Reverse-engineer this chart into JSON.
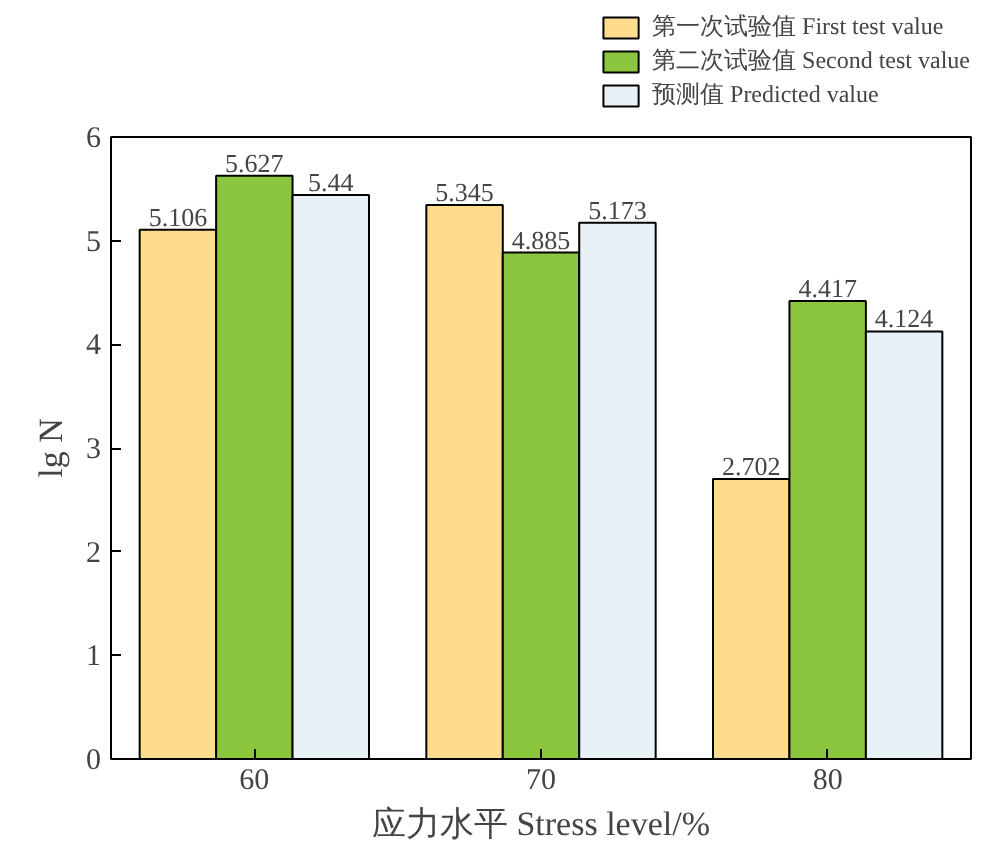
{
  "chart_data": {
    "type": "bar",
    "xlabel": "应力水平 Stress level/%",
    "ylabel": "lg N",
    "categories": [
      "60",
      "70",
      "80"
    ],
    "series": [
      {
        "name": "第一次试验值 First test value",
        "color": "#fddc8e",
        "values": [
          5.106,
          5.345,
          2.702
        ]
      },
      {
        "name": "第二次试验值 Second test value",
        "color": "#8cc63f",
        "values": [
          5.627,
          4.885,
          4.417
        ]
      },
      {
        "name": "预测值 Predicted value",
        "color": "#e8f1f5",
        "values": [
          5.44,
          5.173,
          4.124
        ]
      }
    ],
    "ylim": [
      0,
      6
    ],
    "yticks": [
      0,
      1,
      2,
      3,
      4,
      5,
      6
    ],
    "data_labels": true,
    "legend": "top right",
    "grid": false
  }
}
